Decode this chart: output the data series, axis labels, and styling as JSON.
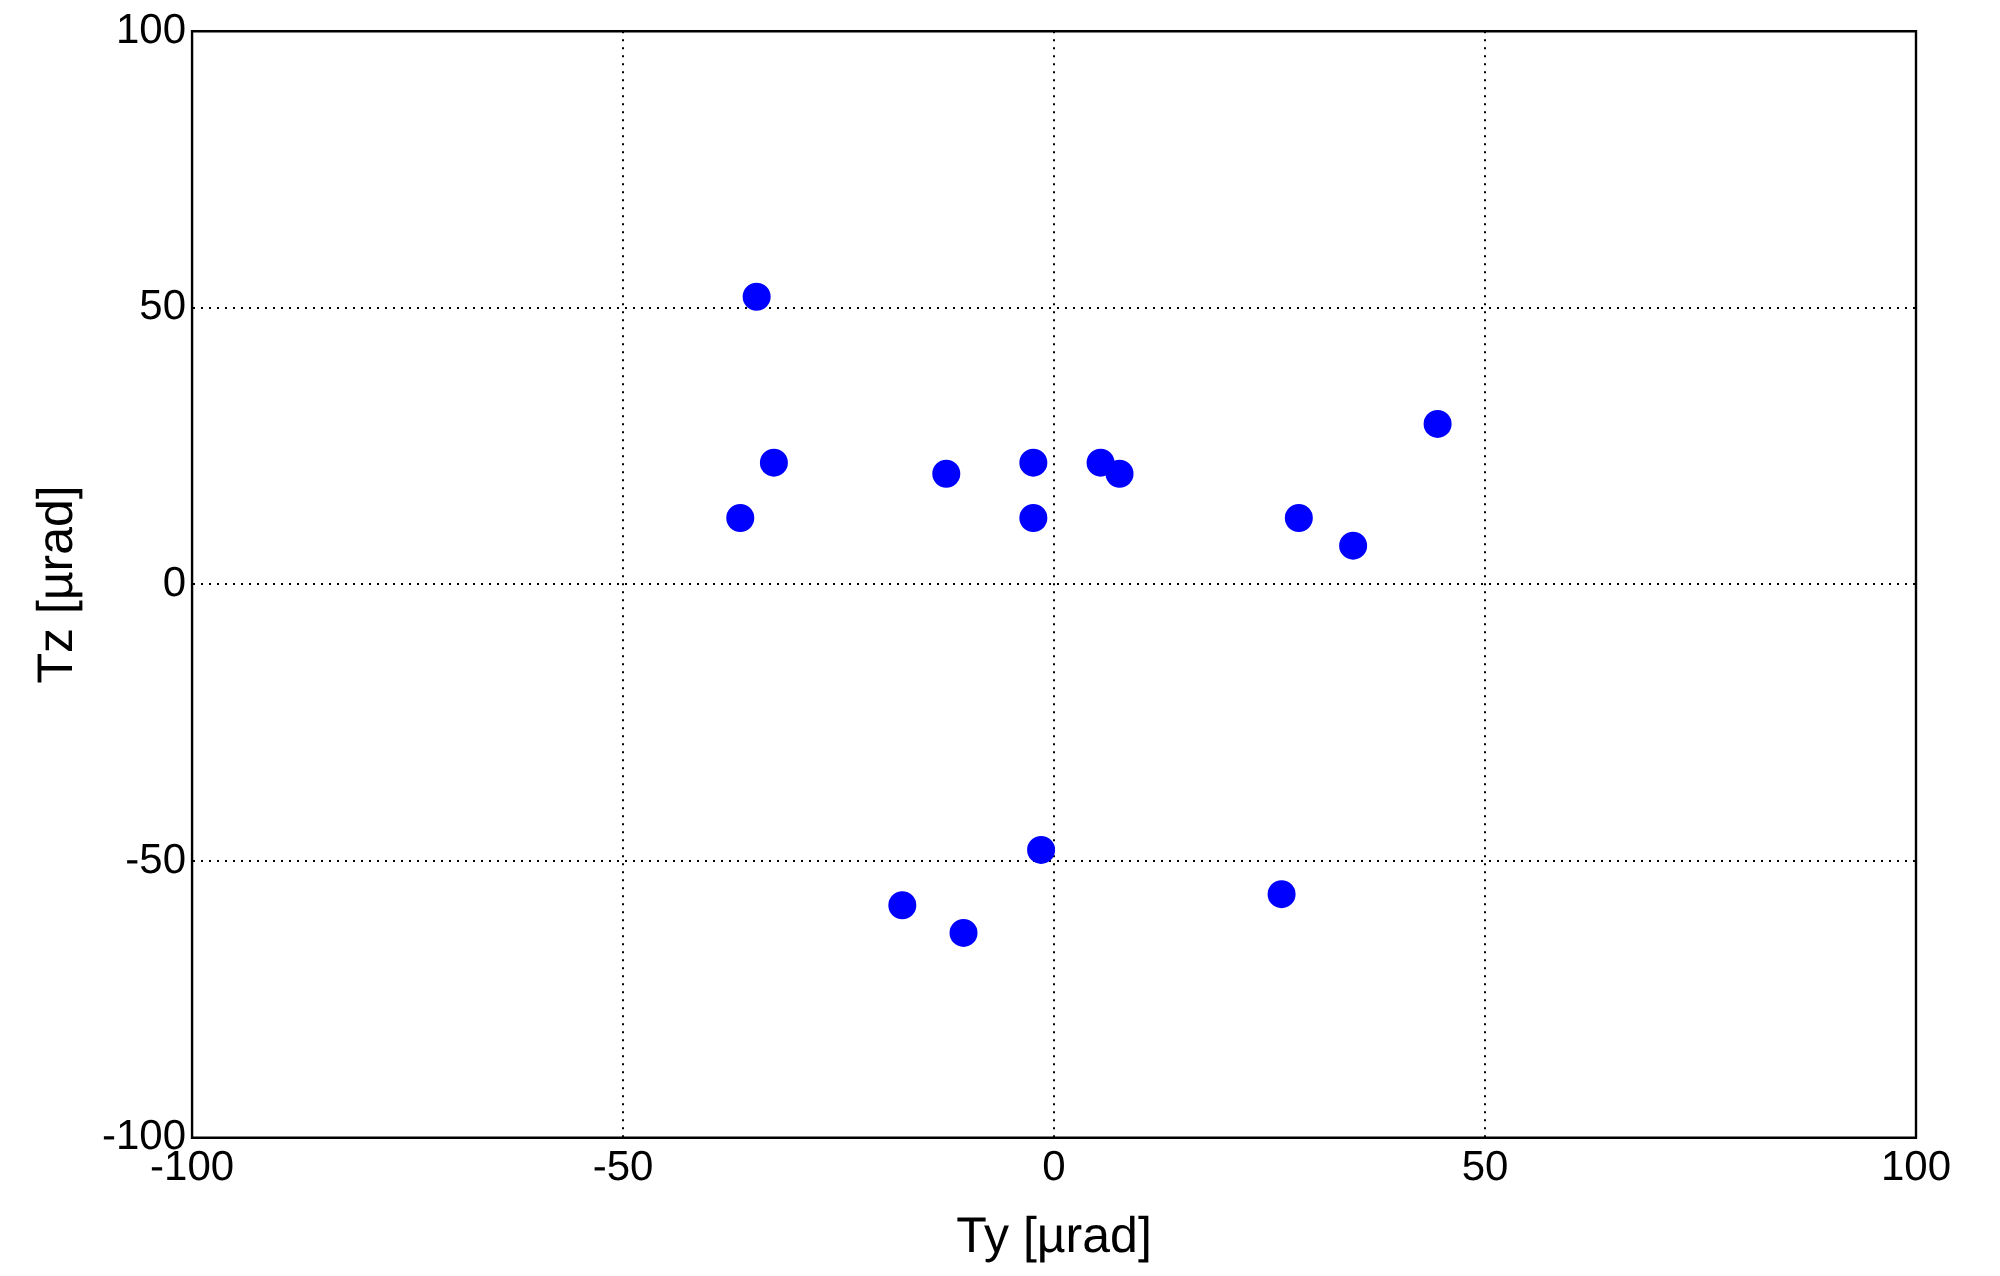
{
  "chart_data": {
    "type": "scatter",
    "xlabel": "Ty [µrad]",
    "ylabel": "Tz [µrad]",
    "xlim": [
      -100,
      100
    ],
    "xticks": [
      -100,
      -50,
      0,
      50,
      100
    ],
    "ylim": [
      -100,
      100
    ],
    "yticks": [
      -100,
      -50,
      0,
      50,
      100
    ],
    "grid": true,
    "marker": "circle",
    "legend": false,
    "series": [
      {
        "color": "#0000ff",
        "x": [
          -34.5,
          -32.5,
          -36.4,
          -12.5,
          -2.4,
          -2.4,
          5.4,
          7.6,
          28.4,
          34.7,
          44.5,
          -1.5,
          -17.6,
          -10.5,
          26.4
        ],
        "values": [
          52,
          22,
          12,
          20,
          22,
          12,
          22,
          20,
          12,
          7,
          29,
          -48,
          -58,
          -63,
          -56
        ]
      }
    ]
  }
}
